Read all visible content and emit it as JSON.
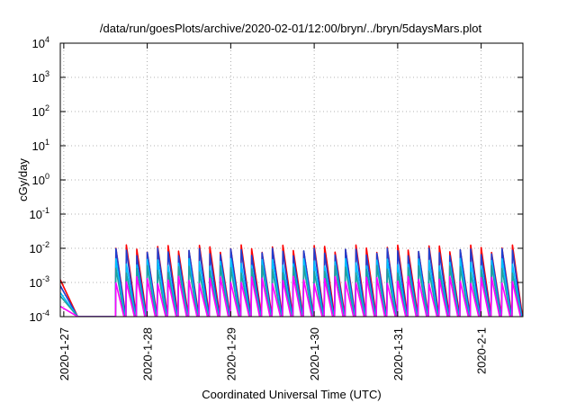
{
  "chart_data": {
    "type": "line",
    "title": "/data/run/goesPlots/archive/2020-02-01/12:00/bryn/../bryn/5daysMars.plot",
    "xlabel": "Coordinated Universal Time (UTC)",
    "ylabel": "cGy/day",
    "yscale": "log",
    "ylim": [
      0.0001,
      10000
    ],
    "y_ticks": [
      {
        "value": 0.0001,
        "base": "10",
        "exp": "-4"
      },
      {
        "value": 0.001,
        "base": "10",
        "exp": "-3"
      },
      {
        "value": 0.01,
        "base": "10",
        "exp": "-2"
      },
      {
        "value": 0.1,
        "base": "10",
        "exp": "-1"
      },
      {
        "value": 1,
        "base": "10",
        "exp": "0"
      },
      {
        "value": 10,
        "base": "10",
        "exp": "1"
      },
      {
        "value": 100,
        "base": "10",
        "exp": "2"
      },
      {
        "value": 1000,
        "base": "10",
        "exp": "3"
      },
      {
        "value": 10000,
        "base": "10",
        "exp": "4"
      }
    ],
    "xlim": [
      "2020-01-26T23:00",
      "2020-02-01T12:00"
    ],
    "x_ticks": [
      "2020-1-27",
      "2020-1-28",
      "2020-1-29",
      "2020-1-30",
      "2020-1-31",
      "2020-2-1"
    ],
    "grid": true,
    "series_colors": [
      "#ff0000",
      "#1f3fd0",
      "#00c0ff",
      "#20a0a0",
      "#ff00ff"
    ],
    "approx_data": {
      "description_free": true,
      "pulse_period_hours": 3,
      "first_pulse": "2020-01-27T15:00",
      "start_tail": [
        {
          "x": "2020-01-26T23:00",
          "values": [
            0.0012,
            0.0008,
            0.0005,
            0.0004,
            0.0002
          ]
        },
        {
          "x": "2020-01-27T04:00",
          "values": [
            0.0001,
            0.0001,
            0.0001,
            0.0001,
            0.0001
          ]
        }
      ],
      "pulse_peaks": [
        0.01,
        0.008,
        0.004,
        0.0025,
        0.0012
      ],
      "pulse_lows": [
        0.0001,
        0.0001,
        0.0001,
        0.0001,
        0.0001
      ]
    }
  }
}
